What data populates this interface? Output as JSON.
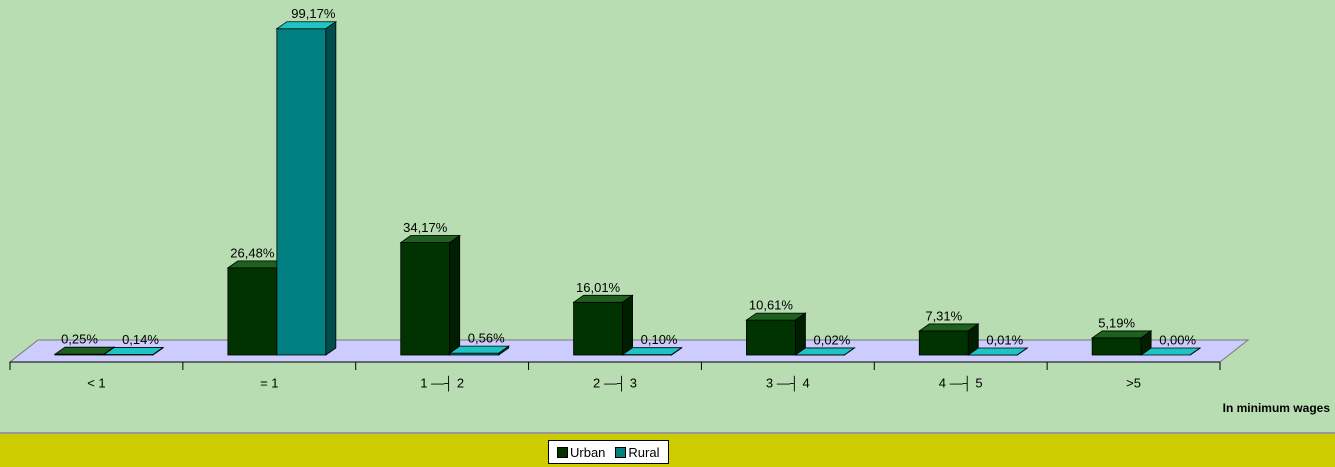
{
  "chart_data": {
    "type": "bar3d",
    "categories": [
      "< 1",
      "= 1",
      "1 —┤ 2",
      "2 —┤ 3",
      "3 —┤ 4",
      "4 —┤ 5",
      ">5"
    ],
    "series": [
      {
        "name": "Urban",
        "color": "#003300",
        "values": [
          0.25,
          26.48,
          34.17,
          16.01,
          10.61,
          7.31,
          5.19
        ],
        "value_labels": [
          "0,25%",
          "26,48%",
          "34,17%",
          "16,01%",
          "10,61%",
          "7,31%",
          "5,19%"
        ]
      },
      {
        "name": "Rural",
        "color": "#008080",
        "values": [
          0.14,
          99.17,
          0.56,
          0.1,
          0.02,
          0.01,
          0.0
        ],
        "value_labels": [
          "0,14%",
          "99,17%",
          "0,56%",
          "0,10%",
          "0,02%",
          "0,01%",
          "0,00%"
        ]
      }
    ],
    "x_label": "In minimum wages",
    "ylim": [
      0,
      100
    ],
    "legend": "bottom"
  }
}
